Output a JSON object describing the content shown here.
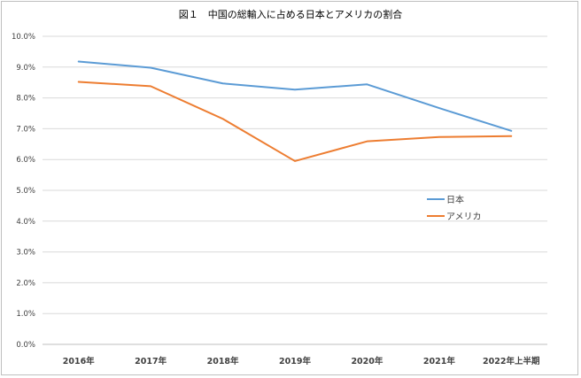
{
  "chart_data": {
    "type": "line",
    "title": "図１　中国の総輸入に占める日本とアメリカの割合",
    "xlabel": "",
    "ylabel": "",
    "categories": [
      "2016年",
      "2017年",
      "2018年",
      "2019年",
      "2020年",
      "2021年",
      "2022年上半期"
    ],
    "ylim": [
      0,
      10
    ],
    "yticks": [
      "0.0%",
      "1.0%",
      "2.0%",
      "3.0%",
      "4.0%",
      "5.0%",
      "6.0%",
      "7.0%",
      "8.0%",
      "9.0%",
      "10.0%"
    ],
    "grid": true,
    "legend_position": "right",
    "series": [
      {
        "name": "日本",
        "color": "#5b9bd5",
        "values": [
          9.18,
          8.98,
          8.47,
          8.27,
          8.44,
          7.67,
          6.93
        ]
      },
      {
        "name": "アメリカ",
        "color": "#ed7d31",
        "values": [
          8.52,
          8.38,
          7.32,
          5.95,
          6.59,
          6.73,
          6.76
        ]
      }
    ]
  }
}
